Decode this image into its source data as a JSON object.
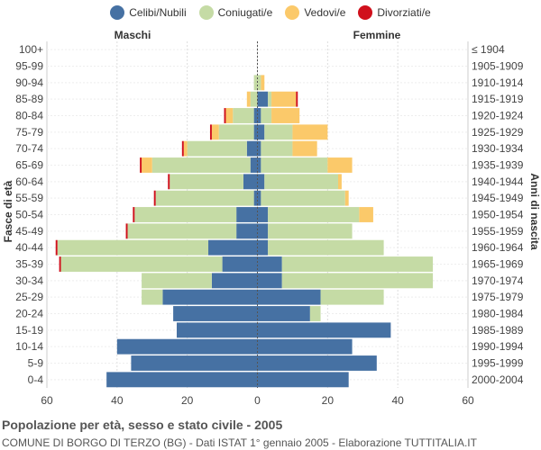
{
  "chart_data": {
    "type": "population-pyramid",
    "title": "Popolazione per età, sesso e stato civile - 2005",
    "source": "COMUNE DI BORGO DI TERZO (BG) - Dati ISTAT 1° gennaio 2005 - Elaborazione TUTTITALIA.IT",
    "left_header": "Maschi",
    "right_header": "Femmine",
    "ylabel_left": "Fasce di età",
    "ylabel_right": "Anni di nascita",
    "xlim": [
      -60,
      60
    ],
    "x_ticks": [
      "60",
      "40",
      "20",
      "0",
      "20",
      "40",
      "60"
    ],
    "legend": [
      {
        "name": "Celibi/Nubili",
        "color": "#4671a3"
      },
      {
        "name": "Coniugati/e",
        "color": "#c5dba5"
      },
      {
        "name": "Vedovi/e",
        "color": "#fbc96a"
      },
      {
        "name": "Divorziati/e",
        "color": "#d0101c"
      }
    ],
    "age_groups": [
      "100+",
      "95-99",
      "90-94",
      "85-89",
      "80-84",
      "75-79",
      "70-74",
      "65-69",
      "60-64",
      "55-59",
      "50-54",
      "45-49",
      "40-44",
      "35-39",
      "30-34",
      "25-29",
      "20-24",
      "15-19",
      "10-14",
      "5-9",
      "0-4"
    ],
    "birth_years": [
      "≤ 1904",
      "1905-1909",
      "1910-1914",
      "1915-1919",
      "1920-1924",
      "1925-1929",
      "1930-1934",
      "1935-1939",
      "1940-1944",
      "1945-1949",
      "1950-1954",
      "1955-1959",
      "1960-1964",
      "1965-1969",
      "1970-1974",
      "1975-1979",
      "1980-1984",
      "1985-1989",
      "1990-1994",
      "1995-1999",
      "2000-2004"
    ],
    "males": {
      "celibi": [
        0,
        0,
        0,
        0,
        1,
        1,
        3,
        2,
        4,
        1,
        6,
        6,
        14,
        10,
        13,
        27,
        24,
        23,
        40,
        36,
        43
      ],
      "coniugati": [
        0,
        0,
        1,
        2,
        6,
        10,
        17,
        28,
        21,
        28,
        29,
        31,
        43,
        46,
        20,
        6,
        0,
        0,
        0,
        0,
        0
      ],
      "vedovi": [
        0,
        0,
        0,
        1,
        2,
        2,
        1,
        3,
        0,
        0,
        0,
        0,
        0,
        0,
        0,
        0,
        0,
        0,
        0,
        0,
        0
      ],
      "divorziati": [
        0,
        0,
        0,
        0,
        0.5,
        0.5,
        0.5,
        0.5,
        0.5,
        0.5,
        0.5,
        0.5,
        0.5,
        0.5,
        0,
        0,
        0,
        0,
        0,
        0,
        0
      ]
    },
    "females": {
      "nubili": [
        0,
        0,
        0,
        3,
        1,
        2,
        1,
        1,
        2,
        1,
        3,
        3,
        3,
        7,
        7,
        18,
        15,
        38,
        27,
        34,
        26
      ],
      "coniugate": [
        0,
        0,
        1,
        1,
        3,
        8,
        9,
        19,
        21,
        24,
        26,
        24,
        33,
        43,
        43,
        18,
        3,
        0,
        0,
        0,
        0
      ],
      "vedove": [
        0,
        0,
        1,
        7,
        8,
        10,
        7,
        7,
        1,
        1,
        4,
        0,
        0,
        0,
        0,
        0,
        0,
        0,
        0,
        0,
        0
      ],
      "divorziate": [
        0,
        0,
        0,
        0.5,
        0,
        0,
        0,
        0,
        0,
        0,
        0,
        0,
        0,
        0,
        0,
        0,
        0,
        0,
        0,
        0,
        0
      ]
    }
  }
}
